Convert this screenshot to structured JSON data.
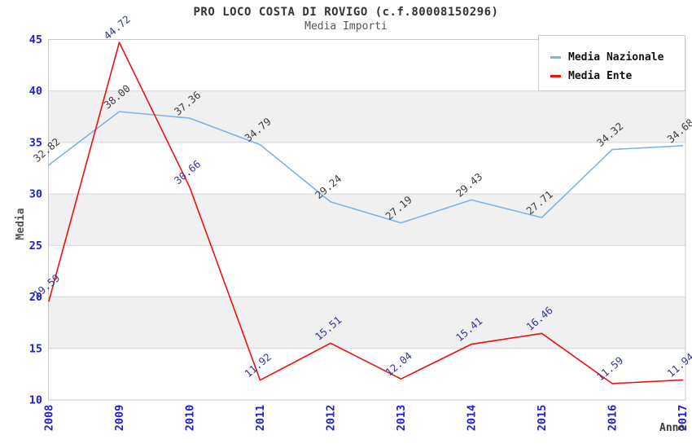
{
  "chart_data": {
    "type": "line",
    "title": "PRO LOCO COSTA DI ROVIGO (c.f.80008150296)",
    "subtitle": "Media Importi",
    "xlabel": "Anno",
    "ylabel": "Media",
    "ylim": [
      10,
      45
    ],
    "ytick_step": 5,
    "yticks": [
      10,
      15,
      20,
      25,
      30,
      35,
      40,
      45
    ],
    "categories": [
      "2008",
      "2009",
      "2010",
      "2011",
      "2012",
      "2013",
      "2014",
      "2015",
      "2016",
      "2017"
    ],
    "series": [
      {
        "name": "Media Nazionale",
        "color": "#7FB2E5",
        "label_color": "#3D3D3D",
        "values": [
          32.82,
          38.0,
          37.36,
          34.79,
          29.24,
          27.19,
          29.43,
          27.71,
          34.32,
          34.68
        ]
      },
      {
        "name": "Media Ente",
        "color": "#EE0F0F",
        "label_color": "#333399",
        "values": [
          19.59,
          44.72,
          30.66,
          11.92,
          15.51,
          12.04,
          15.41,
          16.46,
          11.59,
          11.94
        ]
      }
    ],
    "legend": {
      "position": "top-right",
      "entries": [
        "Media Nazionale",
        "Media Ente"
      ]
    },
    "styles": {
      "axis_tick_color": "#2020CC",
      "grid_color": "#D6D6D6",
      "border_color": "#C8C8C8",
      "band_colors": [
        "#FFFFFF",
        "#F0F0F0"
      ],
      "title_color": "#333333",
      "subtitle_color": "#555555"
    },
    "grid": true,
    "value_labels_rotation_deg": -40
  }
}
